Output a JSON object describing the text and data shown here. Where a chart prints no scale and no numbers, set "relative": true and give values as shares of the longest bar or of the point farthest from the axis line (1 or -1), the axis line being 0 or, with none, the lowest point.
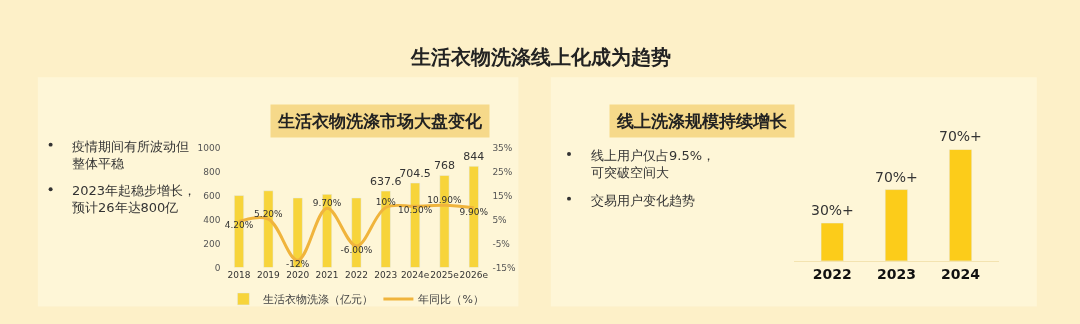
{
  "chart_data": [
    {
      "type": "bar",
      "title": "生活衣物洗涤市场大盘变化",
      "subtitle": "生活衣物洗涤线上化成为趋势",
      "categories": [
        "2018",
        "2019",
        "2020",
        "2021",
        "2022",
        "2023",
        "2024e",
        "2025e",
        "2026e"
      ],
      "series": [
        {
          "name": "生活衣物洗涤（亿元）",
          "color": "#f7d43a",
          "values": [
            600,
            640,
            580,
            610,
            580,
            637.6,
            704.5,
            768,
            844
          ],
          "value_labels": [
            null,
            null,
            null,
            null,
            null,
            "637.6",
            "704.5",
            "768",
            "844"
          ]
        },
        {
          "name": "年同比（%）",
          "type": "line",
          "axis": "y2",
          "color": "#f0b43c",
          "values": [
            4.2,
            5.2,
            -12,
            9.7,
            -6,
            10,
            10.5,
            10.9,
            9.9
          ],
          "value_labels": [
            "4.20%",
            "5.20%",
            "-12%",
            "9.70%",
            "-6.00%",
            "10%",
            "10.50%",
            "10.90%",
            "9.90%"
          ]
        }
      ],
      "ylim": [
        0,
        1000
      ],
      "yticks": [
        0,
        200,
        400,
        600,
        800,
        1000
      ],
      "y2lim": [
        -15,
        35
      ],
      "y2ticks": [
        {
          "value": -15,
          "label": "-15%"
        },
        {
          "value": -5,
          "label": "-5%"
        },
        {
          "value": 5,
          "label": "5%"
        },
        {
          "value": 15,
          "label": "15%"
        },
        {
          "value": 25,
          "label": "25%"
        },
        {
          "value": 35,
          "label": "35%"
        }
      ],
      "legend": "bottom",
      "grid": false,
      "annotations": [
        "疫情期间有所波动但整体平稳",
        "2023年起稳步增长，预计26年达800亿"
      ]
    },
    {
      "type": "bar",
      "title": "线上洗涤规模持续增长",
      "relative": true,
      "categories": [
        "2022",
        "2023",
        "2024"
      ],
      "series": [
        {
          "color": "#fccc1a",
          "values": [
            0.34,
            0.64,
            1
          ]
        }
      ],
      "annotations": [
        "线上用户仅占9.5%，可突破空间大",
        "交易用户变化趋势",
        {
          "text": "30%+",
          "x": "2022",
          "y": 0.34
        },
        {
          "text": "70%+",
          "x": "2023",
          "y": 0.64
        },
        {
          "text": "70%+",
          "x": "2024",
          "y": 1
        }
      ]
    }
  ]
}
